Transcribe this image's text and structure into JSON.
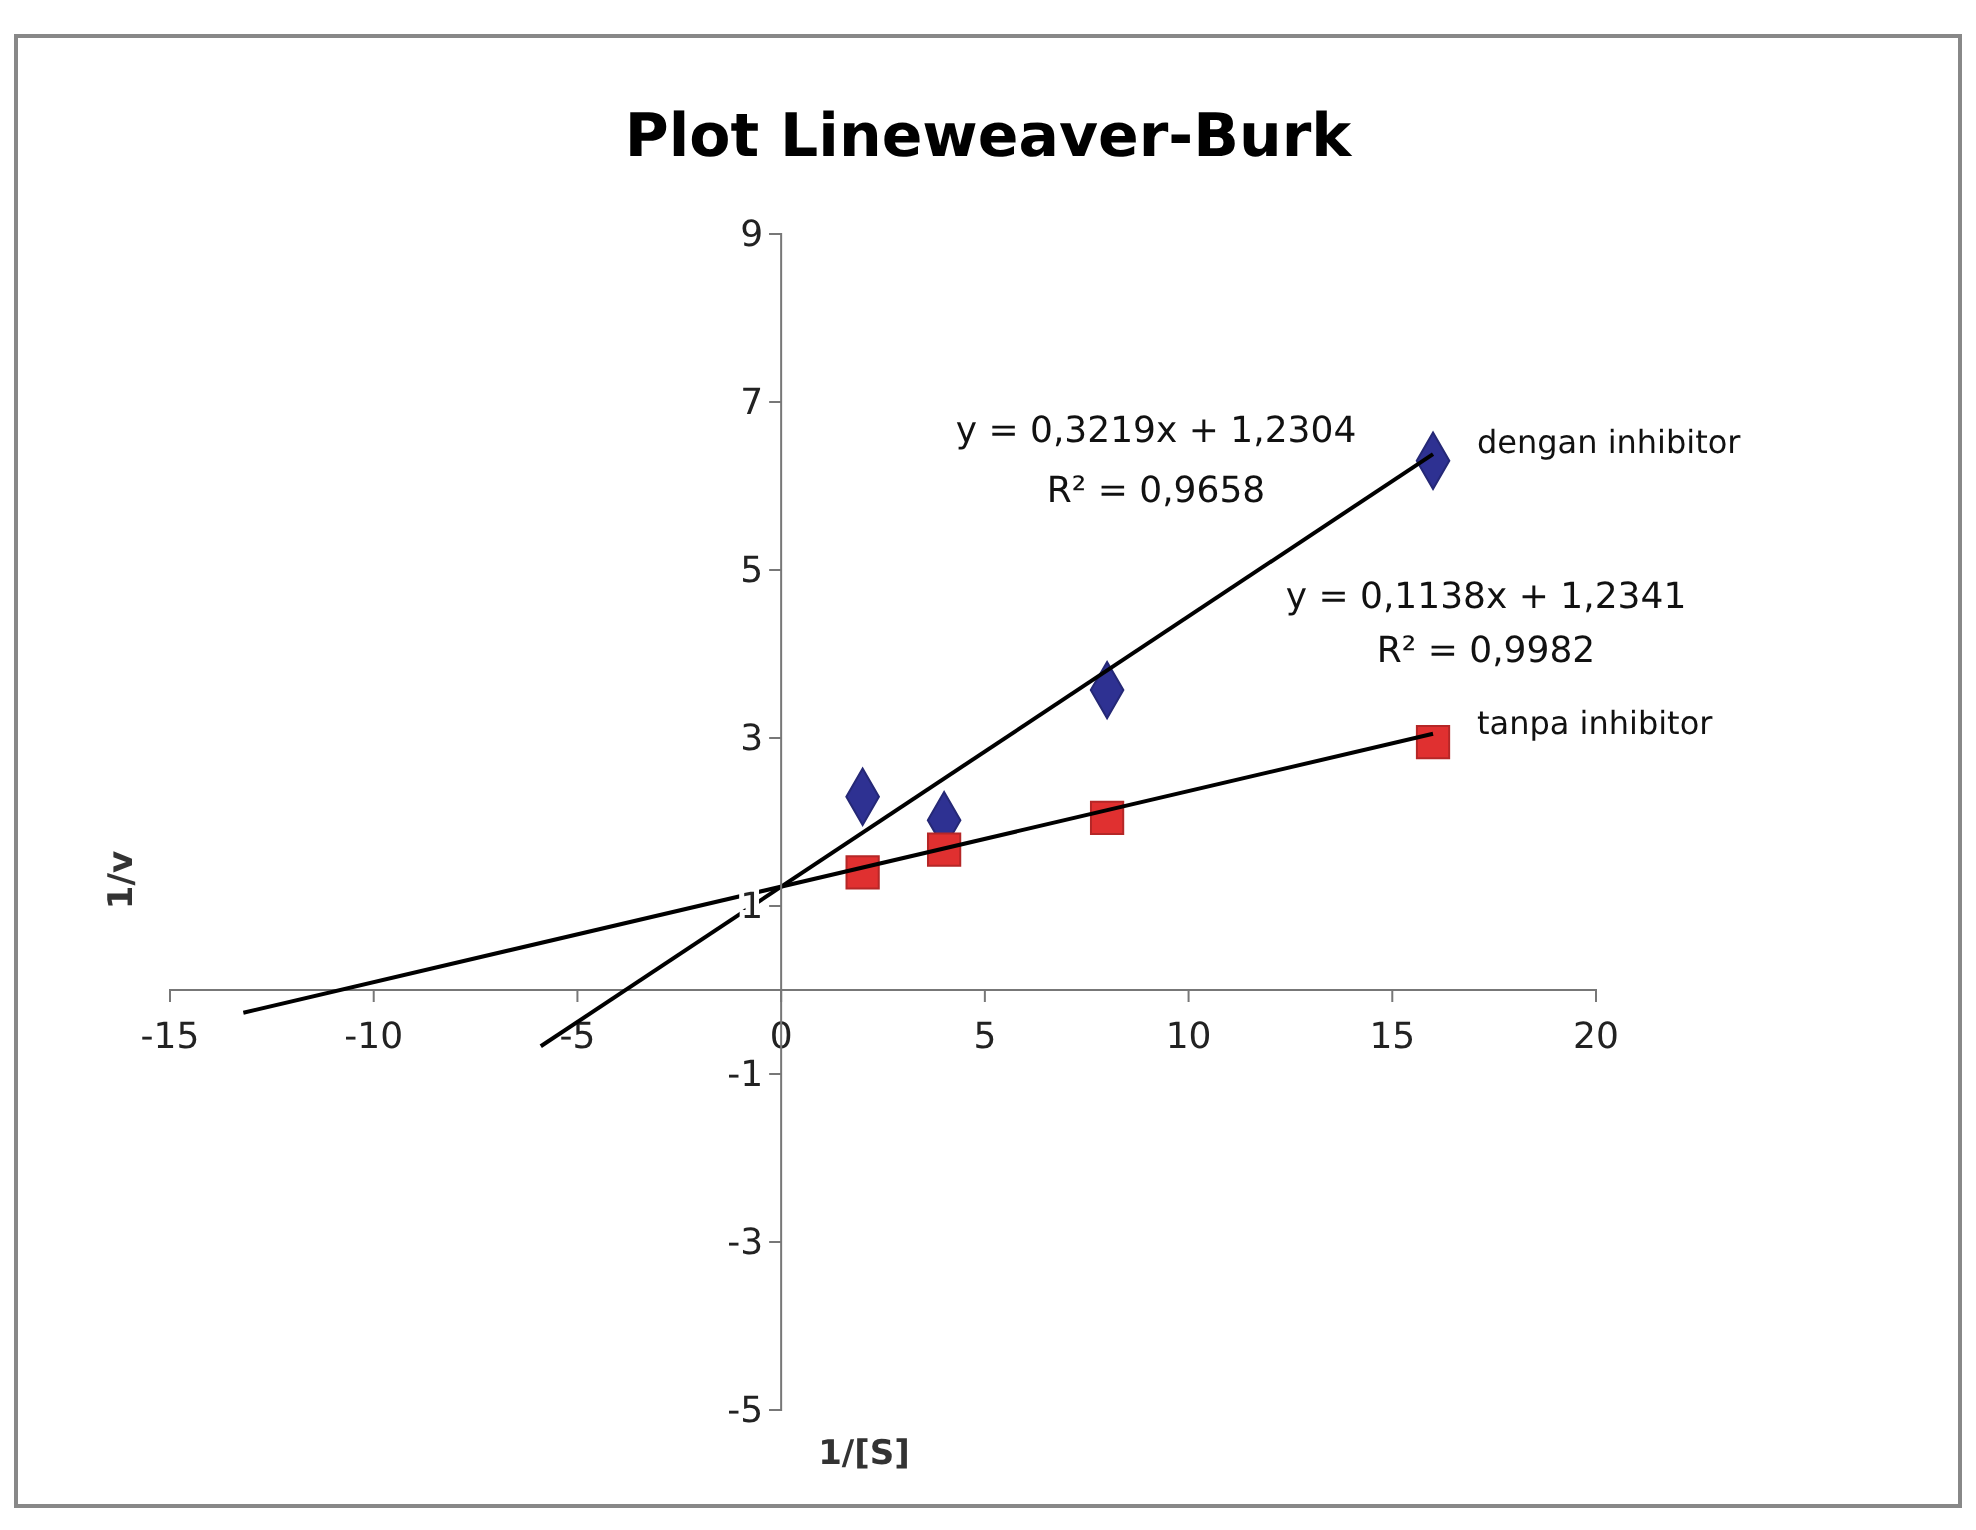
{
  "chart_data": {
    "type": "scatter",
    "title": "Plot Lineweaver-Burk",
    "xlabel": "1/[S]",
    "ylabel": "1/v",
    "xlim": [
      -15,
      20
    ],
    "xticks": [
      -15,
      -10,
      -5,
      0,
      5,
      10,
      15,
      20
    ],
    "ylim": [
      -5,
      9
    ],
    "yticks": [
      -5,
      -3,
      -1,
      1,
      3,
      5,
      7,
      9
    ],
    "grid": false,
    "series": [
      {
        "name": "dengan inhibitor",
        "marker": "diamond",
        "color": "#2e3192",
        "x": [
          2,
          4,
          8,
          16
        ],
        "values": [
          2.3,
          2.02,
          3.57,
          6.3
        ]
      },
      {
        "name": "tanpa inhibitor",
        "marker": "square",
        "color": "#e03030",
        "x": [
          2,
          4,
          8,
          16
        ],
        "values": [
          1.4,
          1.67,
          2.05,
          2.95
        ]
      },
      {
        "type": "line",
        "color": "#000000",
        "marker": "none",
        "x": [
          -5.9,
          16
        ],
        "values": [
          -0.67,
          6.38
        ]
      },
      {
        "type": "line",
        "color": "#000000",
        "marker": "none",
        "x": [
          -13.2,
          16
        ],
        "values": [
          -0.27,
          3.05
        ]
      }
    ],
    "annotations": [
      "y = 0,3219x + 1,2304",
      "R² = 0,9658",
      "y = 0,1138x + 1,2341",
      "R² = 0,9982"
    ]
  }
}
